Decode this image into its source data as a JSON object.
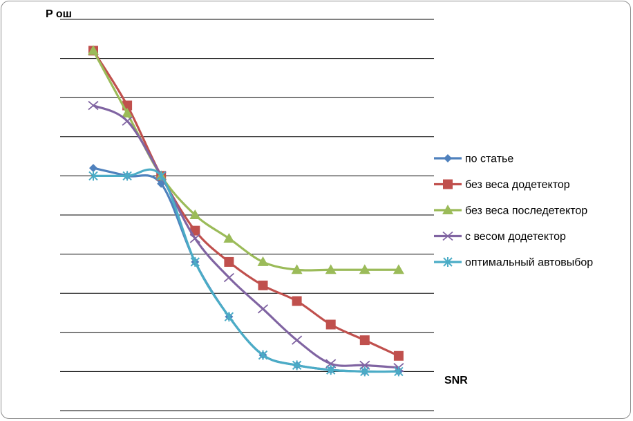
{
  "chart_data": {
    "type": "line",
    "title": "",
    "ylabel": "P ош",
    "xlabel": "SNR",
    "x": [
      1,
      2,
      3,
      4,
      5,
      6,
      7,
      8,
      9,
      10
    ],
    "ylim": [
      -1,
      9
    ],
    "grid": true,
    "legend_position": "right",
    "series": [
      {
        "name": "по статье",
        "color": "#4f81bd",
        "marker": "diamond",
        "values": [
          5.2,
          5.0,
          4.8,
          2.8,
          1.4,
          0.42,
          0.16,
          0.04,
          0.0,
          0.0
        ]
      },
      {
        "name": "без веса додетектор",
        "color": "#c0504d",
        "marker": "square",
        "values": [
          8.2,
          6.8,
          5.0,
          3.6,
          2.8,
          2.2,
          1.8,
          1.2,
          0.8,
          0.4
        ]
      },
      {
        "name": "без веса последетектор",
        "color": "#9bbb59",
        "marker": "triangle",
        "values": [
          8.2,
          6.6,
          5.0,
          4.0,
          3.4,
          2.8,
          2.6,
          2.6,
          2.6,
          2.6
        ]
      },
      {
        "name": "с весом додетектор",
        "color": "#8064a2",
        "marker": "x",
        "values": [
          6.8,
          6.4,
          5.0,
          3.4,
          2.4,
          1.6,
          0.8,
          0.2,
          0.16,
          0.1
        ]
      },
      {
        "name": "оптимальный автовыбор",
        "color": "#4bacc6",
        "marker": "asterisk",
        "values": [
          5.0,
          5.0,
          5.0,
          2.8,
          1.4,
          0.42,
          0.16,
          0.04,
          0.0,
          0.0
        ]
      }
    ]
  }
}
